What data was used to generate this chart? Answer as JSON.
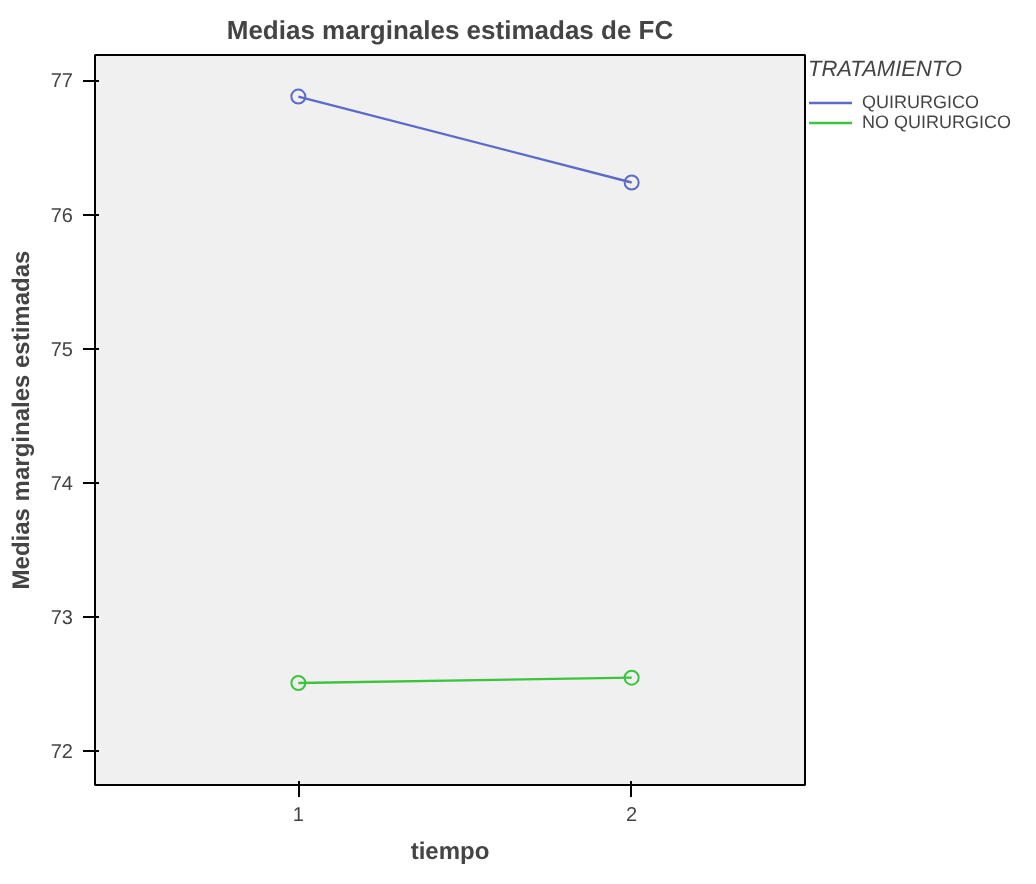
{
  "chart_data": {
    "type": "line",
    "title": "Medias marginales estimadas de FC",
    "xlabel": "tiempo",
    "ylabel": "Medias marginales estimadas",
    "legend_title": "TRATAMIENTO",
    "x": [
      1,
      2
    ],
    "series": [
      {
        "name": "QUIRURGICO",
        "color": "#5b6bc8",
        "values": [
          76.88,
          76.24
        ]
      },
      {
        "name": "NO QUIRURGICO",
        "color": "#3cc43c",
        "values": [
          72.51,
          72.55
        ]
      }
    ],
    "xlim": [
      0.39,
      2.52
    ],
    "ylim": [
      71.75,
      77.19
    ],
    "xticks": [
      1,
      2
    ],
    "yticks": [
      72,
      73,
      74,
      75,
      76,
      77
    ],
    "grid": false,
    "legend": "top right",
    "marker": "circle",
    "line_style": "solid"
  }
}
